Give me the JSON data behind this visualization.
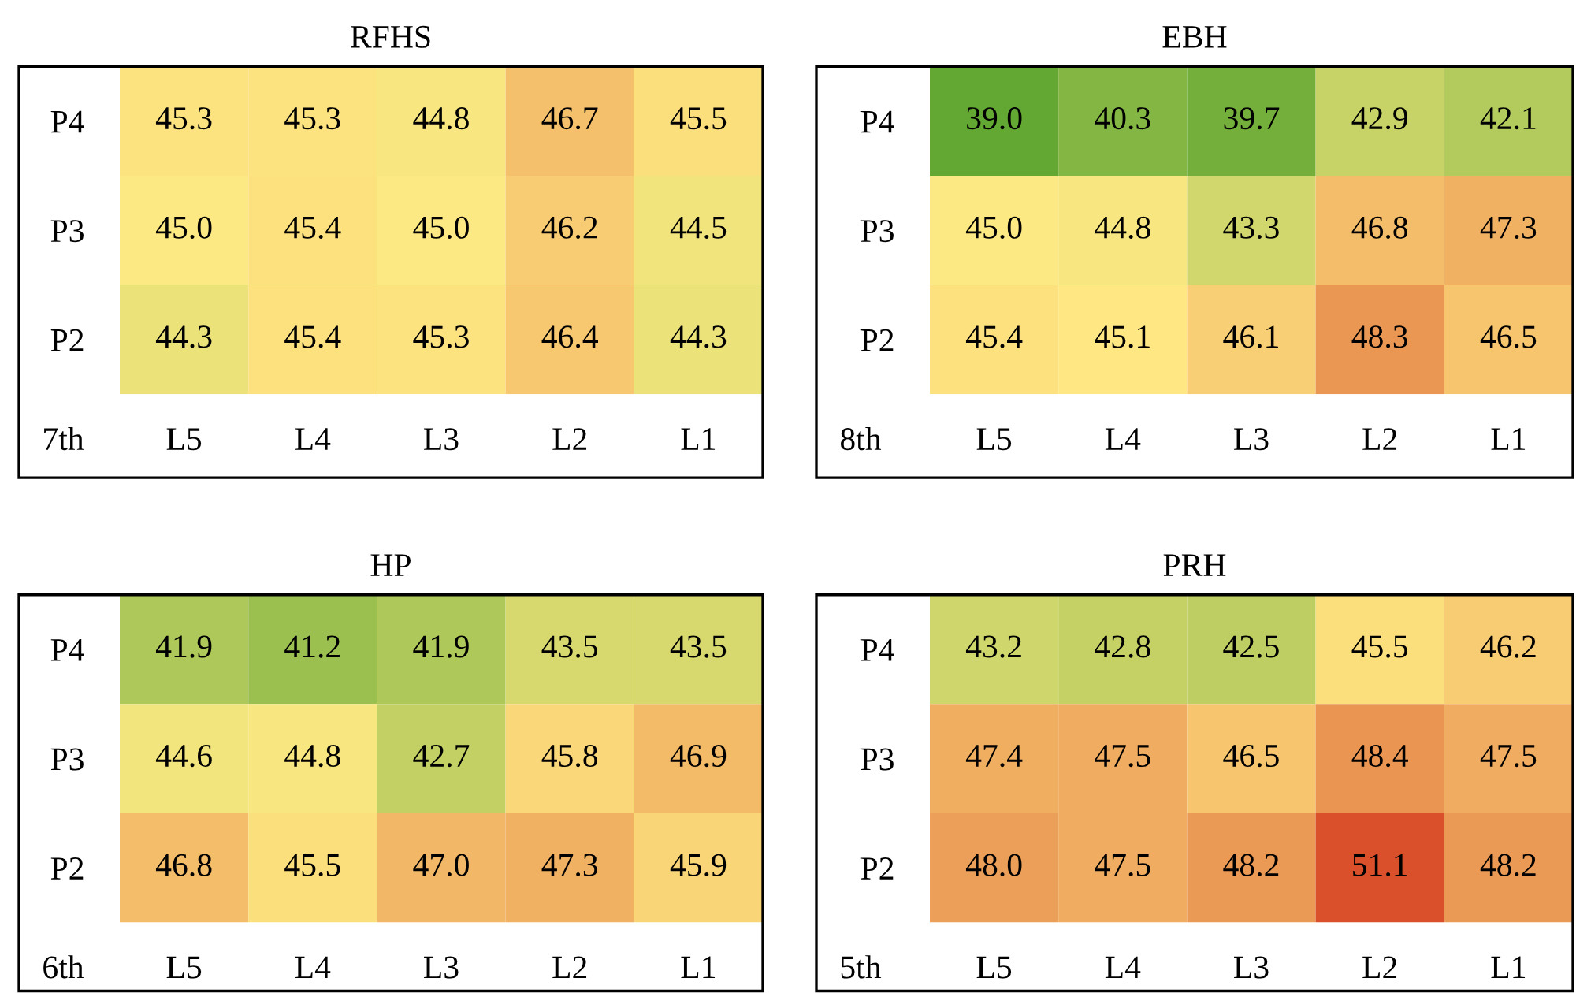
{
  "chart_data": [
    {
      "type": "heatmap",
      "title": "RFHS",
      "categories": [
        "L5",
        "L4",
        "L3",
        "L2",
        "L1"
      ],
      "y_categories": [
        "P4",
        "P3",
        "P2"
      ],
      "cells": [
        [
          45.3,
          45.3,
          44.8,
          46.7,
          45.5
        ],
        [
          45.0,
          45.4,
          45.0,
          46.2,
          44.5
        ],
        [
          44.3,
          45.4,
          45.3,
          46.4,
          44.3
        ]
      ],
      "cell_labels": [
        [
          "45.3",
          "45.3",
          "44.8",
          "46.7",
          "45.5"
        ],
        [
          "45.0",
          "45.4",
          "45.0",
          "46.2",
          "44.5"
        ],
        [
          "44.3",
          "45.4",
          "45.3",
          "46.4",
          "44.3"
        ]
      ],
      "annotations": [
        "7th"
      ]
    },
    {
      "type": "heatmap",
      "title": "EBH",
      "categories": [
        "L5",
        "L4",
        "L3",
        "L2",
        "L1"
      ],
      "y_categories": [
        "P4",
        "P3",
        "P2"
      ],
      "cells": [
        [
          39.0,
          40.3,
          39.7,
          42.9,
          42.1
        ],
        [
          45.0,
          44.8,
          43.3,
          46.8,
          47.3
        ],
        [
          45.4,
          45.1,
          46.1,
          48.3,
          46.5
        ]
      ],
      "cell_labels": [
        [
          "39.0",
          "40.3",
          "39.7",
          "42.9",
          "42.1"
        ],
        [
          "45.0",
          "44.8",
          "43.3",
          "46.8",
          "47.3"
        ],
        [
          "45.4",
          "45.1",
          "46.1",
          "48.3",
          "46.5"
        ]
      ],
      "annotations": [
        "8th"
      ]
    },
    {
      "type": "heatmap",
      "title": "HP",
      "categories": [
        "L5",
        "L4",
        "L3",
        "L2",
        "L1"
      ],
      "y_categories": [
        "P4",
        "P3",
        "P2"
      ],
      "cells": [
        [
          41.9,
          41.2,
          41.9,
          43.5,
          43.5
        ],
        [
          44.6,
          44.8,
          42.7,
          45.8,
          46.9
        ],
        [
          46.8,
          45.5,
          47.0,
          47.3,
          45.9
        ]
      ],
      "cell_labels": [
        [
          "41.9",
          "41.2",
          "41.9",
          "43.5",
          "43.5"
        ],
        [
          "44.6",
          "44.8",
          "42.7",
          "45.8",
          "46.9"
        ],
        [
          "46.8",
          "45.5",
          "47.0",
          "47.3",
          "45.9"
        ]
      ],
      "annotations": [
        "6th"
      ]
    },
    {
      "type": "heatmap",
      "title": "PRH",
      "categories": [
        "L5",
        "L4",
        "L3",
        "L2",
        "L1"
      ],
      "y_categories": [
        "P4",
        "P3",
        "P2"
      ],
      "cells": [
        [
          43.2,
          42.8,
          42.5,
          45.5,
          46.2
        ],
        [
          47.4,
          47.5,
          46.5,
          48.4,
          47.5
        ],
        [
          48.0,
          47.5,
          48.2,
          51.1,
          48.2
        ]
      ],
      "cell_labels": [
        [
          "43.2",
          "42.8",
          "42.5",
          "45.5",
          "46.2"
        ],
        [
          "47.4",
          "47.5",
          "46.5",
          "48.4",
          "47.5"
        ],
        [
          "48.0",
          "47.5",
          "48.2",
          "51.1",
          "48.2"
        ]
      ],
      "annotations": [
        "5th"
      ]
    }
  ]
}
